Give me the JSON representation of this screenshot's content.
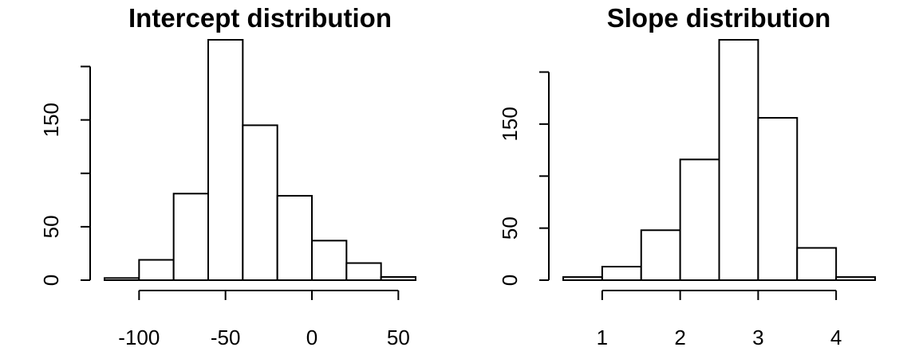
{
  "chart_data": [
    {
      "type": "histogram",
      "title": "Intercept distribution",
      "xlabel": "",
      "ylabel": "",
      "bins": [
        {
          "x0": -120,
          "x1": -100,
          "count": 2
        },
        {
          "x0": -100,
          "x1": -80,
          "count": 19
        },
        {
          "x0": -80,
          "x1": -60,
          "count": 81
        },
        {
          "x0": -60,
          "x1": -40,
          "count": 225
        },
        {
          "x0": -40,
          "x1": -20,
          "count": 145
        },
        {
          "x0": -20,
          "x1": 0,
          "count": 79
        },
        {
          "x0": 0,
          "x1": 20,
          "count": 37
        },
        {
          "x0": 20,
          "x1": 40,
          "count": 16
        },
        {
          "x0": 40,
          "x1": 60,
          "count": 3
        }
      ],
      "x_ticks": [
        -100,
        -50,
        0,
        50
      ],
      "x_tick_labels": [
        "-100",
        "-50",
        "0",
        "50"
      ],
      "y_ticks": [
        0,
        50,
        100,
        150,
        200
      ],
      "y_tick_labels": [
        "0",
        "50",
        "",
        "150",
        ""
      ],
      "xlim": [
        -120,
        60
      ],
      "ylim": [
        0,
        225
      ],
      "grid": false
    },
    {
      "type": "histogram",
      "title": "Slope distribution",
      "xlabel": "",
      "ylabel": "",
      "bins": [
        {
          "x0": 0.5,
          "x1": 1.0,
          "count": 3
        },
        {
          "x0": 1.0,
          "x1": 1.5,
          "count": 13
        },
        {
          "x0": 1.5,
          "x1": 2.0,
          "count": 48
        },
        {
          "x0": 2.0,
          "x1": 2.5,
          "count": 116
        },
        {
          "x0": 2.5,
          "x1": 3.0,
          "count": 231
        },
        {
          "x0": 3.0,
          "x1": 3.5,
          "count": 156
        },
        {
          "x0": 3.5,
          "x1": 4.0,
          "count": 31
        },
        {
          "x0": 4.0,
          "x1": 4.5,
          "count": 3
        }
      ],
      "x_ticks": [
        1,
        2,
        3,
        4
      ],
      "x_tick_labels": [
        "1",
        "2",
        "3",
        "4"
      ],
      "y_ticks": [
        0,
        50,
        100,
        150,
        200
      ],
      "y_tick_labels": [
        "0",
        "50",
        "",
        "150",
        ""
      ],
      "xlim": [
        0.5,
        4.5
      ],
      "ylim": [
        0,
        231
      ],
      "grid": false
    }
  ]
}
